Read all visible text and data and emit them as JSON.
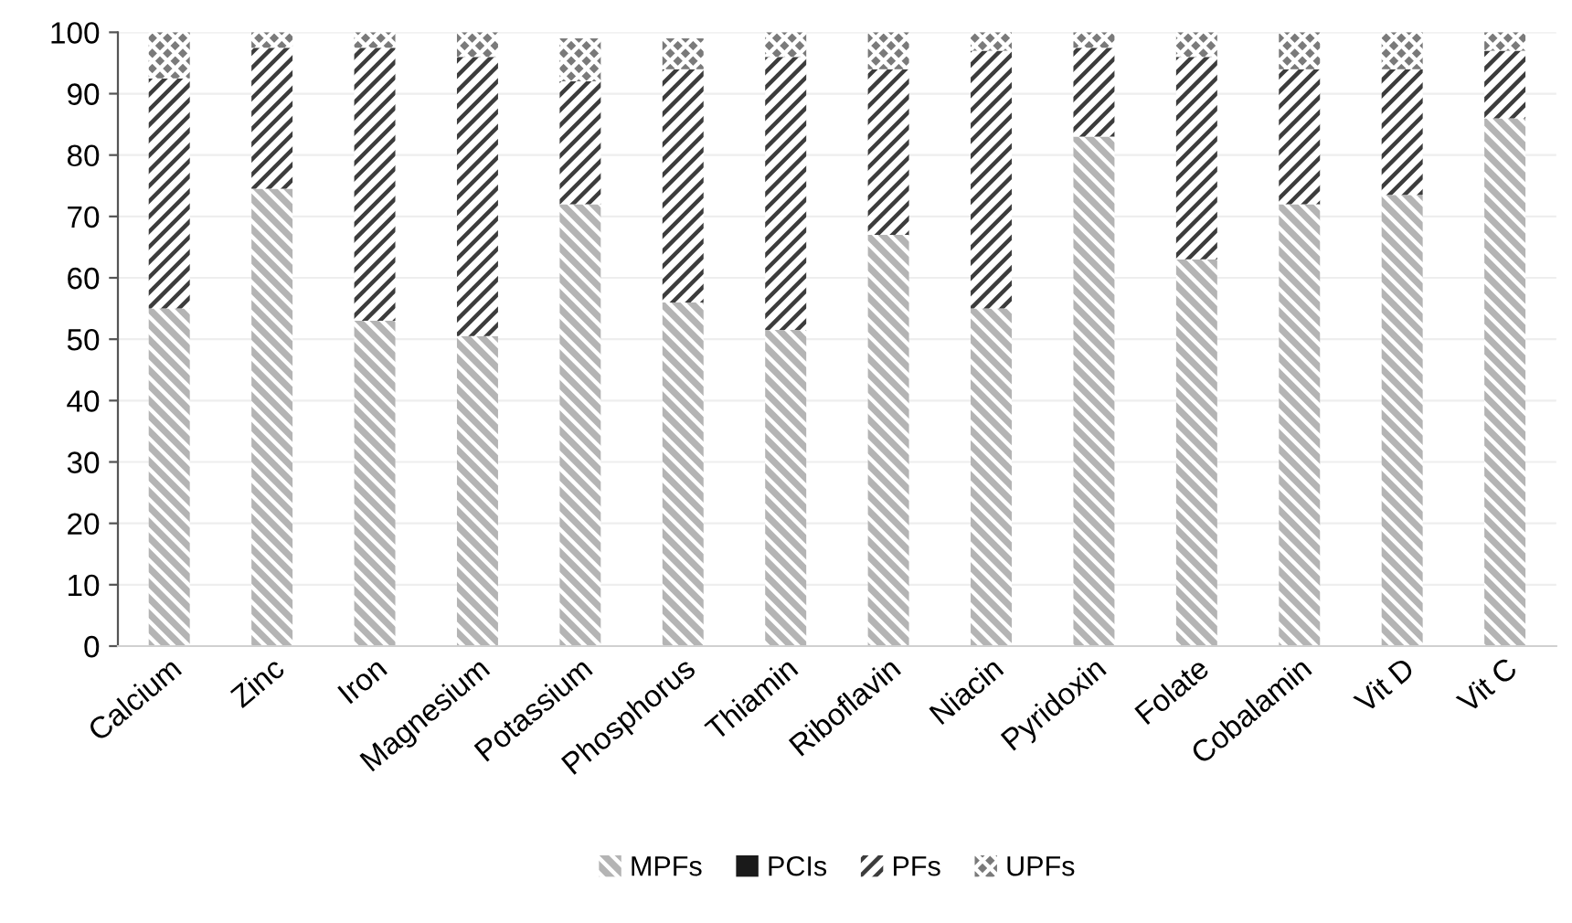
{
  "chart_data": {
    "type": "bar",
    "stacked": true,
    "categories": [
      "Calcium",
      "Zinc",
      "Iron",
      "Magnesium",
      "Potassium",
      "Phosphorus",
      "Thiamin",
      "Riboflavin",
      "Niacin",
      "Pyridoxin",
      "Folate",
      "Cobalamin",
      "Vit D",
      "Vit C"
    ],
    "series": [
      {
        "name": "MPFs",
        "color": "#b4b4b4",
        "values": [
          55,
          74.5,
          53,
          50.5,
          72,
          56,
          51.5,
          67,
          55,
          83,
          63,
          72,
          73.5,
          86
        ]
      },
      {
        "name": "PCIs",
        "color": "#1a1a1a",
        "values": [
          0,
          0,
          0,
          0,
          0,
          0,
          0,
          0,
          0,
          0,
          0,
          0,
          0,
          0
        ]
      },
      {
        "name": "PFs",
        "color": "#3c3c3c",
        "values": [
          37.5,
          23,
          44.5,
          45.5,
          20,
          38,
          44.5,
          27,
          42,
          14.5,
          33,
          22,
          20.5,
          11
        ]
      },
      {
        "name": "UPFs",
        "color": "#7a7a7a",
        "values": [
          7.5,
          2.5,
          2.5,
          4,
          7,
          5,
          4,
          6,
          3,
          2.5,
          4,
          6,
          6,
          3
        ]
      }
    ],
    "ylim": [
      0,
      100
    ],
    "yticks": [
      0,
      10,
      20,
      30,
      40,
      50,
      60,
      70,
      80,
      90,
      100
    ],
    "grid": "y",
    "legend": "bottom"
  }
}
